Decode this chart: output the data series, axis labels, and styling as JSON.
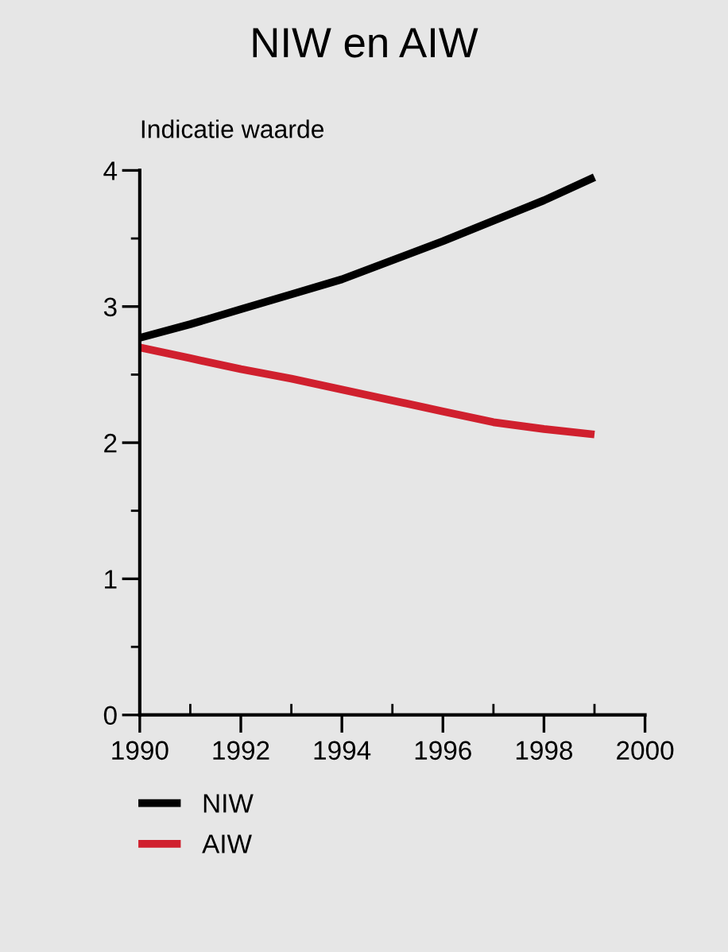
{
  "chart_data": {
    "type": "line",
    "title": "NIW en AIW",
    "ylabel": "Indicatie waarde",
    "x": [
      1990,
      1991,
      1992,
      1993,
      1994,
      1995,
      1996,
      1997,
      1998,
      1999
    ],
    "series": [
      {
        "name": "NIW",
        "color": "#000000",
        "values": [
          2.77,
          2.87,
          2.98,
          3.09,
          3.2,
          3.34,
          3.48,
          3.63,
          3.78,
          3.95
        ]
      },
      {
        "name": "AIW",
        "color": "#d0202e",
        "values": [
          2.7,
          2.62,
          2.54,
          2.47,
          2.39,
          2.31,
          2.23,
          2.15,
          2.1,
          2.06
        ]
      }
    ],
    "xlim": [
      1990,
      2000
    ],
    "xticks": [
      1990,
      1992,
      1994,
      1996,
      1998,
      2000
    ],
    "ylim": [
      0,
      4
    ],
    "yticks": [
      0,
      1,
      2,
      3,
      4
    ],
    "grid": false,
    "legend": "bottom left",
    "marker": "none",
    "line_style": "solid"
  }
}
